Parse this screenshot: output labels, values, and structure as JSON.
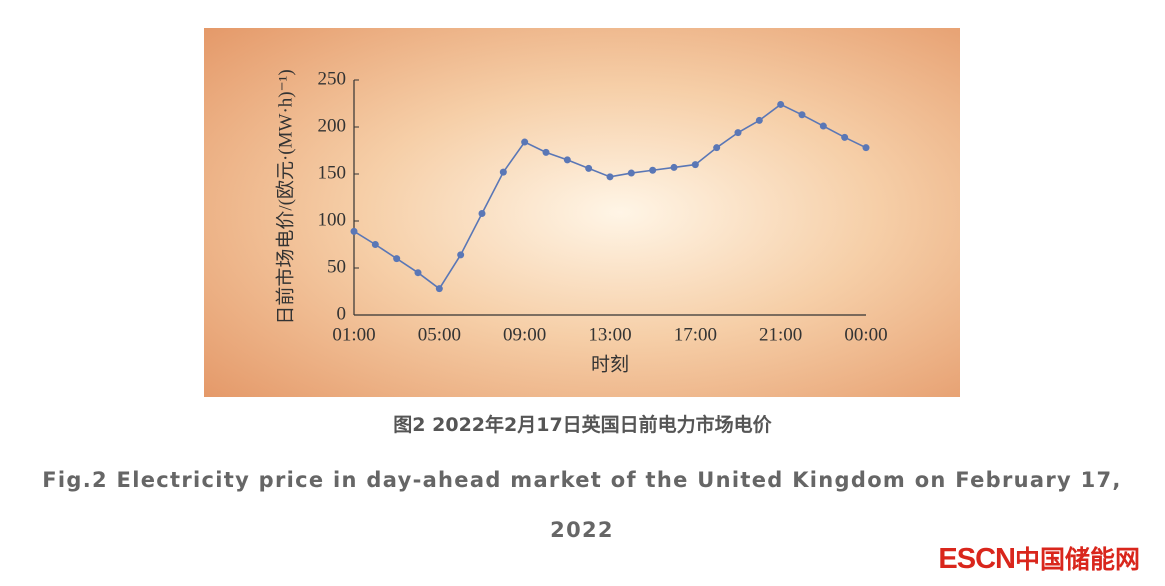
{
  "chart_data": {
    "type": "line",
    "categories": [
      "01:00",
      null,
      null,
      null,
      "05:00",
      null,
      null,
      null,
      "09:00",
      null,
      null,
      null,
      "13:00",
      null,
      null,
      null,
      "17:00",
      null,
      null,
      null,
      "21:00",
      null,
      null,
      null,
      "00:00"
    ],
    "series": [
      {
        "color": "#5a77b6",
        "values": [
          89,
          75,
          60,
          45,
          28,
          64,
          108,
          152,
          184,
          173,
          165,
          156,
          147,
          151,
          154,
          157,
          160,
          178,
          194,
          207,
          224,
          213,
          201,
          189,
          178
        ]
      }
    ],
    "ylim": [
      0,
      250
    ],
    "yticks": [
      0,
      50,
      100,
      150,
      200,
      250
    ],
    "xlabel": "时刻",
    "ylabel": "日前市场电价/(欧元·(MW·h)⁻¹)"
  },
  "caption": {
    "zh": "图2  2022年2月17日英国日前电力市场电价",
    "en": "Fig.2  Electricity price in day-ahead market of the United Kingdom on February 17, 2022"
  },
  "logo": {
    "brand": "ESCN",
    "name": "中国储能网"
  }
}
